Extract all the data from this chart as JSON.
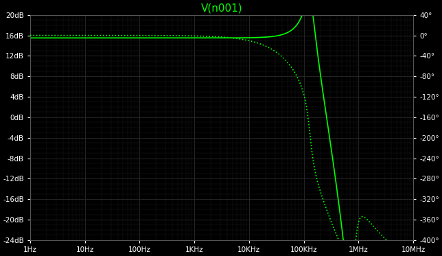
{
  "title": "V(n001)",
  "title_color": "#00ff00",
  "bg_color": "#000000",
  "grid_color_major": "#2a2a2a",
  "grid_color_minor": "#1a1a1a",
  "line_color": "#00ff00",
  "freq_min": 1,
  "freq_max": 10000000.0,
  "db_min": -24,
  "db_max": 20,
  "phase_min": -400,
  "phase_max": 40,
  "db_ticks": [
    20,
    16,
    12,
    8,
    4,
    0,
    -4,
    -8,
    -12,
    -16,
    -20,
    -24
  ],
  "db_tick_labels": [
    "20dB",
    "16dB",
    "12dB",
    "8dB",
    "4dB",
    "0dB",
    "-4dB",
    "-8dB",
    "-12dB",
    "-16dB",
    "-20dB",
    "-24dB"
  ],
  "phase_ticks": [
    40,
    0,
    -40,
    -80,
    -120,
    -160,
    -200,
    -240,
    -280,
    -320,
    -360,
    -400
  ],
  "phase_tick_labels": [
    "40°",
    "0°",
    "-40°",
    "-80°",
    "-120°",
    "-160°",
    "-200°",
    "-240°",
    "-280°",
    "-320°",
    "-360°",
    "-400°"
  ],
  "freq_ticks": [
    1,
    10,
    100,
    1000,
    10000,
    100000,
    1000000,
    10000000
  ],
  "freq_tick_labels": [
    "1Hz",
    "10Hz",
    "100Hz",
    "1KHz",
    "10KHz",
    "100KHz",
    "1MHz",
    "10MHz"
  ]
}
